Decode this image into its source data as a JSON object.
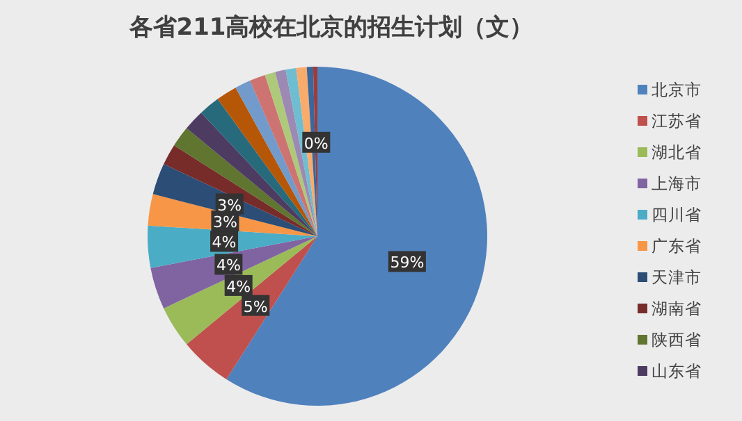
{
  "chart_data": {
    "type": "pie",
    "title": "各省211高校在北京的招生计划（文）",
    "categories": [
      "北京市",
      "江苏省",
      "湖北省",
      "上海市",
      "四川省",
      "广东省",
      "天津市",
      "湖南省",
      "陕西省",
      "山东省",
      null,
      null,
      null,
      null,
      null,
      null,
      null,
      null,
      null,
      null
    ],
    "values": [
      59,
      5,
      4,
      4,
      4,
      3,
      3,
      2,
      2,
      2,
      2,
      2,
      1.5,
      1.5,
      1,
      1,
      1,
      1,
      0.6,
      0.4
    ],
    "value_labels": [
      "59%",
      "5%",
      "4%",
      "4%",
      "4%",
      "3%",
      "3%",
      null,
      null,
      null,
      null,
      null,
      null,
      null,
      null,
      null,
      null,
      null,
      null,
      "0%"
    ],
    "colors": [
      "#4f81bd",
      "#c0504d",
      "#9bbb59",
      "#8064a2",
      "#4bacc6",
      "#f79646",
      "#2c4d75",
      "#772c2a",
      "#5f7530",
      "#4d3b62",
      "#276a7c",
      "#b65708",
      "#729aca",
      "#cd7371",
      "#afc97a",
      "#9c8ab4",
      "#6fbdd1",
      "#f9ab6b",
      "#3a679c",
      "#9f3b38"
    ],
    "legend": "right"
  }
}
